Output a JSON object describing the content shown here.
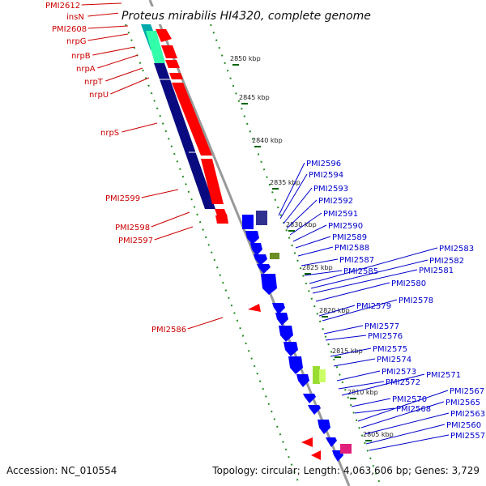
{
  "title": "Proteus mirabilis HI4320, complete genome",
  "footer": {
    "accession_label": "Accession:",
    "accession": "NC_010554",
    "topology_label": "Topology:",
    "topology": "circular",
    "length_label": "Length:",
    "length": "4,063,606 bp",
    "genes_label": "Genes:",
    "genes": "3,729"
  },
  "colors": {
    "left_labels": "#cc0000",
    "right_labels": "#0000cc",
    "forward_gene": "#ff0000",
    "reverse_gene": "#0000ff",
    "backbone": "#999999",
    "dots": "#228b22",
    "ticks": "#006400"
  },
  "ticks": [
    "2850 kbp",
    "2845 kbp",
    "2840 kbp",
    "2835 kbp",
    "2830 kbp",
    "2825 kbp",
    "2820 kbp",
    "2815 kbp",
    "2810 kbp",
    "2805 kbp"
  ],
  "left_labels": [
    "PMI2612",
    "insN",
    "PMI2608",
    "nrpG",
    "nrpB",
    "nrpA",
    "nrpT",
    "nrpU",
    "nrpS",
    "PMI2599",
    "PMI2598",
    "PMI2597",
    "PMI2586"
  ],
  "right_labels": [
    "PMI2596",
    "PMI2594",
    "PMI2593",
    "PMI2592",
    "PMI2591",
    "PMI2590",
    "PMI2589",
    "PMI2588",
    "PMI2587",
    "PMI2585",
    "PMI2583",
    "PMI2582",
    "PMI2581",
    "PMI2580",
    "PMI2579",
    "PMI2578",
    "PMI2577",
    "PMI2576",
    "PMI2575",
    "PMI2574",
    "PMI2573",
    "PMI2572",
    "PMI2571",
    "PMI2570",
    "PMI2568",
    "PMI2567",
    "PMI2565",
    "PMI2563",
    "PMI2560",
    "PMI2557"
  ]
}
